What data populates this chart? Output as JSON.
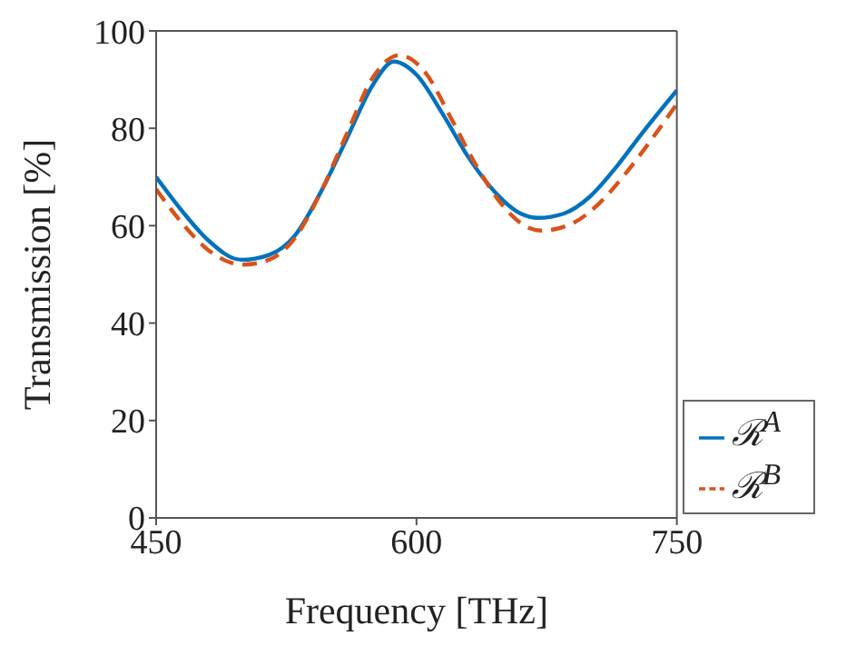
{
  "chart_data": {
    "type": "line",
    "xlabel": "Frequency [THz]",
    "ylabel": "Transmission [%]",
    "xlim": [
      450,
      750
    ],
    "xticks": [
      450,
      600,
      750
    ],
    "ylim": [
      0,
      100
    ],
    "yticks": [
      0,
      20,
      40,
      60,
      80,
      100
    ],
    "legend": "bottom right",
    "grid": false,
    "marker": "none",
    "series": [
      {
        "name": "ℛ$^{A}$",
        "color": "#0072bd",
        "line_style": "solid",
        "x": [
          450,
          465,
          480,
          499,
          515,
          530,
          545,
          560,
          575,
          587,
          600,
          615,
          630,
          645,
          660,
          670,
          685,
          700,
          715,
          730,
          750
        ],
        "values": [
          70,
          63,
          57,
          53,
          54,
          58,
          67,
          78,
          89,
          93.7,
          91,
          83,
          74,
          67,
          62.5,
          61.6,
          62.5,
          66,
          72,
          79,
          87.8
        ]
      },
      {
        "name": "ℛ$^{B}$",
        "color": "#d95319",
        "line_style": "dashed",
        "x": [
          450,
          465,
          480,
          500,
          515,
          530,
          545,
          560,
          575,
          590,
          605,
          620,
          635,
          650,
          665,
          672,
          690,
          705,
          720,
          735,
          750
        ],
        "values": [
          67.5,
          60.5,
          55,
          52,
          53,
          57.5,
          67,
          79,
          90.5,
          95,
          91.5,
          82,
          72,
          64,
          59.5,
          59,
          60.5,
          64.5,
          70.5,
          77.5,
          85
        ]
      }
    ]
  }
}
